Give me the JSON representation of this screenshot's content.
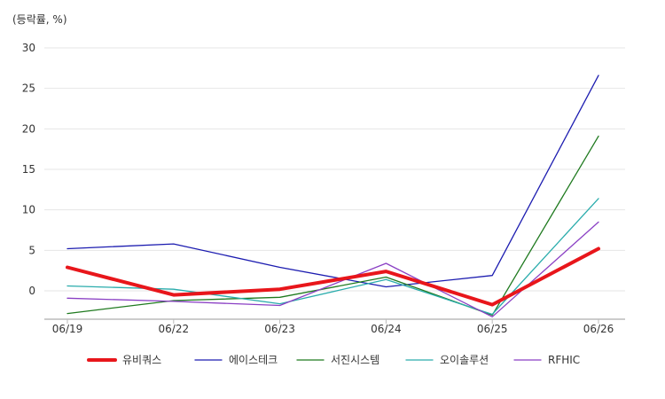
{
  "chart_data": {
    "type": "line",
    "unit_label": "(등락률, %)",
    "categories": [
      "06/19",
      "06/22",
      "06/23",
      "06/24",
      "06/25",
      "06/26"
    ],
    "ylim": [
      -3.5,
      30
    ],
    "yticks": [
      0,
      5,
      10,
      15,
      20,
      25,
      30
    ],
    "grid": true,
    "legend_position": "bottom",
    "series": [
      {
        "name": "유비쿼스",
        "color": "#e8161b",
        "emphasis": true,
        "values": [
          2.9,
          -0.5,
          0.2,
          2.4,
          -1.7,
          5.2
        ]
      },
      {
        "name": "에이스테크",
        "color": "#1c1cb0",
        "values": [
          5.2,
          5.8,
          2.9,
          0.5,
          1.9,
          26.6
        ]
      },
      {
        "name": "서진시스템",
        "color": "#1f7a1f",
        "values": [
          -2.8,
          -1.2,
          -0.8,
          1.7,
          -3.0,
          19.1
        ]
      },
      {
        "name": "오이솔루션",
        "color": "#2aacac",
        "values": [
          0.6,
          0.2,
          -1.6,
          1.4,
          -2.9,
          11.4
        ]
      },
      {
        "name": "RFHIC",
        "color": "#8a3fc4",
        "values": [
          -0.9,
          -1.3,
          -1.8,
          3.4,
          -3.2,
          8.5
        ]
      }
    ]
  }
}
